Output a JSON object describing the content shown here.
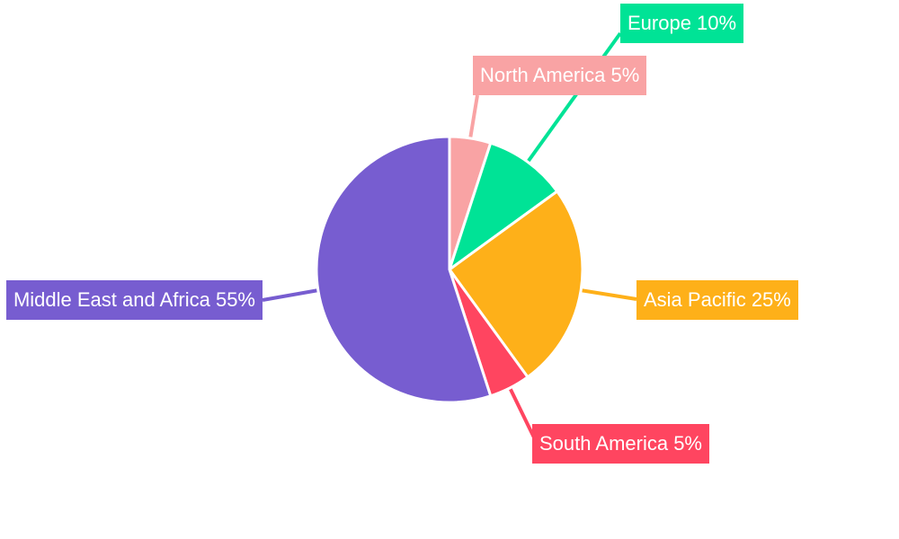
{
  "chart_data": {
    "type": "pie",
    "start_angle": "top, clockwise",
    "slices": [
      {
        "label": "North America",
        "value": 5,
        "text": "North America 5%",
        "color": "#F9A3A4"
      },
      {
        "label": "Europe",
        "value": 10,
        "text": "Europe 10%",
        "color": "#00E396"
      },
      {
        "label": "Asia Pacific",
        "value": 25,
        "text": "Asia Pacific 25%",
        "color": "#FEB019"
      },
      {
        "label": "South America",
        "value": 5,
        "text": "South America 5%",
        "color": "#FF4560"
      },
      {
        "label": "Middle East and Africa",
        "value": 55,
        "text": "Middle East and Africa 55%",
        "color": "#775DD0"
      }
    ]
  }
}
